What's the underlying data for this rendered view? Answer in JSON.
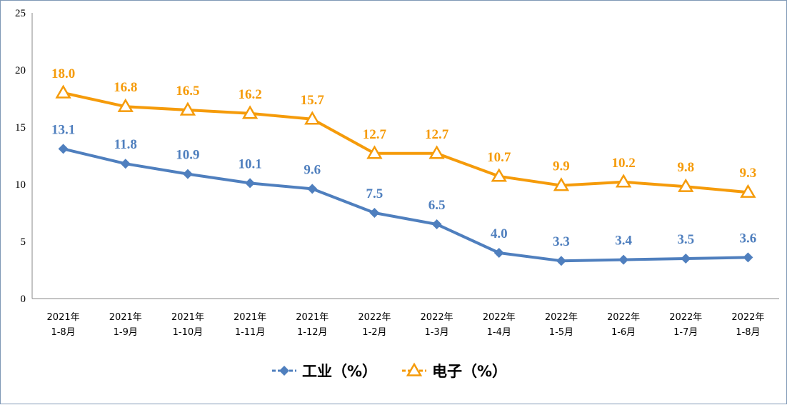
{
  "chart_data": {
    "type": "line",
    "title": "",
    "xlabel": "",
    "ylabel": "",
    "ylim": [
      0,
      25
    ],
    "yticks": [
      0,
      5,
      10,
      15,
      20,
      25
    ],
    "grid": false,
    "legend": "bottom-center",
    "categories": [
      [
        "2021年",
        "1-8月"
      ],
      [
        "2021年",
        "1-9月"
      ],
      [
        "2021年",
        "1-10月"
      ],
      [
        "2021年",
        "1-11月"
      ],
      [
        "2021年",
        "1-12月"
      ],
      [
        "2022年",
        "1-2月"
      ],
      [
        "2022年",
        "1-3月"
      ],
      [
        "2022年",
        "1-4月"
      ],
      [
        "2022年",
        "1-5月"
      ],
      [
        "2022年",
        "1-6月"
      ],
      [
        "2022年",
        "1-7月"
      ],
      [
        "2022年",
        "1-8月"
      ]
    ],
    "series": [
      {
        "name": "工业（%）",
        "marker": "diamond",
        "color": "#4f7fbe",
        "label_color": "#4f7fbe",
        "values": [
          13.1,
          11.8,
          10.9,
          10.1,
          9.6,
          7.5,
          6.5,
          4.0,
          3.3,
          3.4,
          3.5,
          3.6
        ],
        "labels": [
          "13.1",
          "11.8",
          "10.9",
          "10.1",
          "9.6",
          "7.5",
          "6.5",
          "4.0",
          "3.3",
          "3.4",
          "3.5",
          "3.6"
        ]
      },
      {
        "name": "电子（%）",
        "marker": "triangle",
        "color": "#f59b0a",
        "label_color": "#f59b0a",
        "values": [
          18.0,
          16.8,
          16.5,
          16.2,
          15.7,
          12.7,
          12.7,
          10.7,
          9.9,
          10.2,
          9.8,
          9.3
        ],
        "labels": [
          "18.0",
          "16.8",
          "16.5",
          "16.2",
          "15.7",
          "12.7",
          "12.7",
          "10.7",
          "9.9",
          "10.2",
          "9.8",
          "9.3"
        ]
      }
    ]
  }
}
